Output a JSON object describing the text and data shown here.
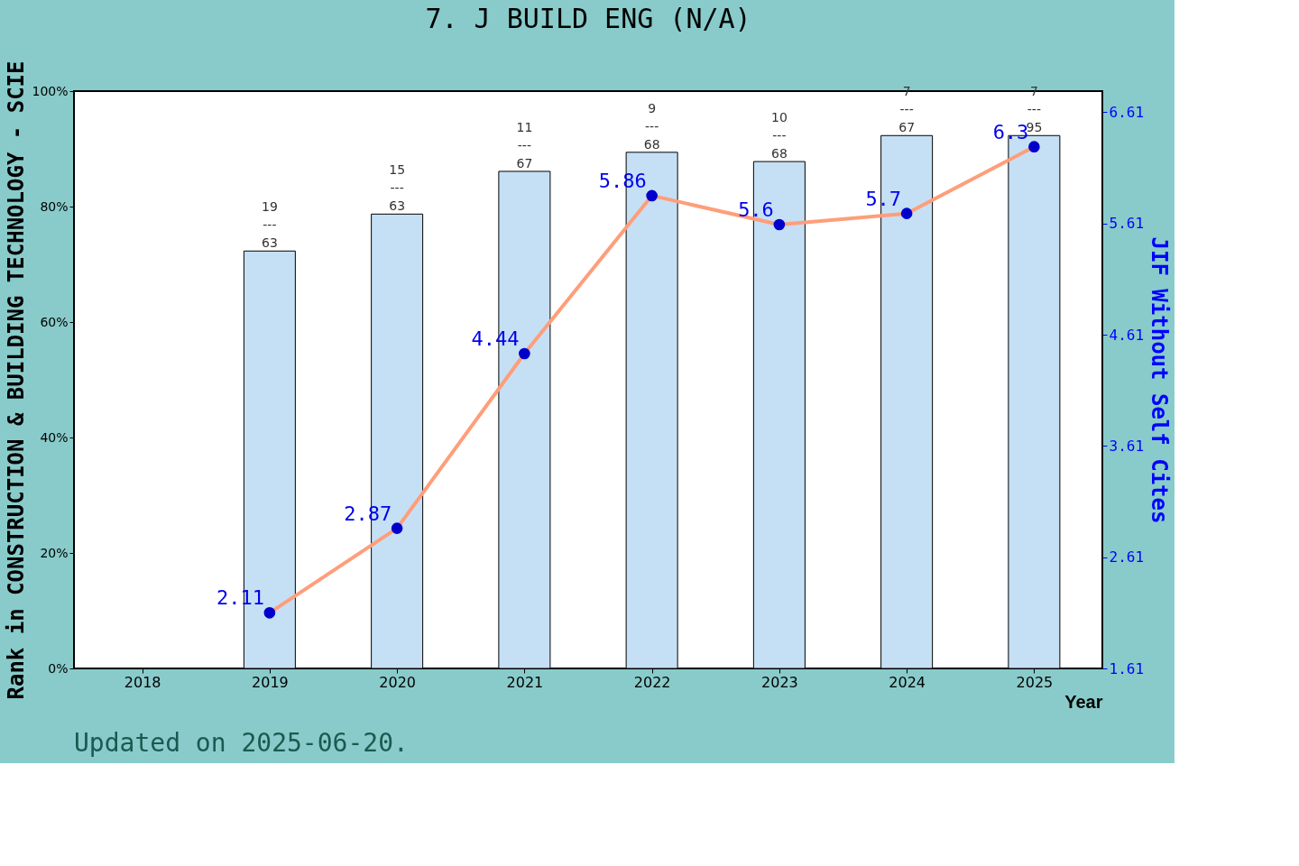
{
  "chart_data": {
    "type": "bar",
    "title": "7. J BUILD ENG (N/A)",
    "xlabel": "Year",
    "ylabel": "Rank in CONSTRUCTION & BUILDING TECHNOLOGY - SCIE",
    "y2label": "JIF Without Self Cites",
    "categories": [
      "2018",
      "2019",
      "2020",
      "2021",
      "2022",
      "2023",
      "2024",
      "2025"
    ],
    "series": [
      {
        "color": "#c5e0f5",
        "values": [
          null,
          72.3,
          78.7,
          86.1,
          89.4,
          87.8,
          92.3,
          92.3
        ]
      },
      {
        "type": "line",
        "axis": "y2",
        "color": "#ff9e7a",
        "values": [
          null,
          2.11,
          2.87,
          4.44,
          5.86,
          5.6,
          5.7,
          6.3
        ],
        "value_labels": [
          null,
          "2.11",
          "2.87",
          "4.44",
          "5.86",
          "5.6",
          "5.7",
          "6.3"
        ]
      }
    ],
    "ylim": [
      0,
      100
    ],
    "yticks": [
      {
        "value": 0,
        "label": "0%"
      },
      {
        "value": 20,
        "label": "20%"
      },
      {
        "value": 40,
        "label": "40%"
      },
      {
        "value": 60,
        "label": "60%"
      },
      {
        "value": 80,
        "label": "80%"
      },
      {
        "value": 100,
        "label": "100%"
      }
    ],
    "y2lim": [
      1.61,
      6.8
    ],
    "y2ticks": [
      1.61,
      2.61,
      3.61,
      4.61,
      5.61,
      6.61
    ],
    "marker": "circle",
    "annotations": [
      {
        "text": "19\n---\n63",
        "x": "2019",
        "y": 72.3
      },
      {
        "text": "15\n---\n63",
        "x": "2020",
        "y": 78.7
      },
      {
        "text": "11\n---\n67",
        "x": "2021",
        "y": 86.1
      },
      {
        "text": "9\n---\n68",
        "x": "2022",
        "y": 89.4
      },
      {
        "text": "10\n---\n68",
        "x": "2023",
        "y": 87.8
      },
      {
        "text": "7\n---\n67",
        "x": "2024",
        "y": 92.3
      },
      {
        "text": "7\n---\n95",
        "x": "2025",
        "y": 92.3
      },
      "Updated on 2025-06-20."
    ]
  }
}
